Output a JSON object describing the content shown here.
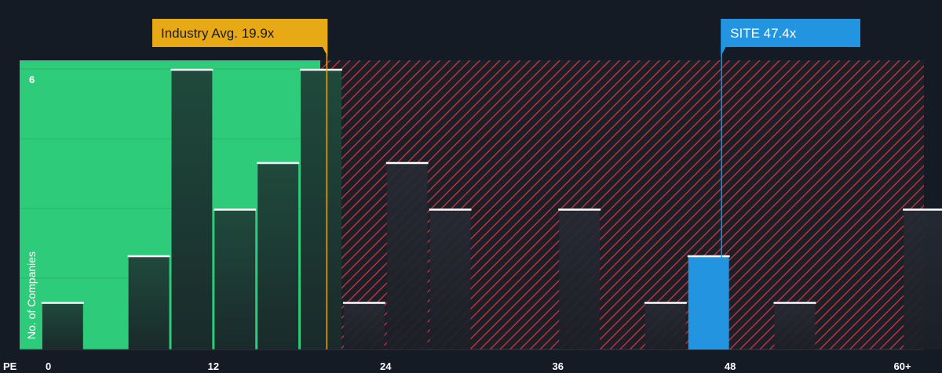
{
  "chart_data": {
    "type": "bar",
    "title": "",
    "xlabel": "PE",
    "ylabel": "No. of Companies",
    "x_tick_labels": [
      "0",
      "12",
      "24",
      "36",
      "48",
      "60+"
    ],
    "x_tick_values": [
      0,
      12,
      24,
      36,
      48,
      60
    ],
    "y_tick_labels": [
      "6"
    ],
    "y_tick_values": [
      6
    ],
    "xlim": [
      -1.5,
      61.5
    ],
    "ylim": [
      0,
      6.15
    ],
    "bins": [
      {
        "x_start": 0,
        "x_end": 3,
        "count": 1
      },
      {
        "x_start": 3,
        "x_end": 6,
        "count": 0
      },
      {
        "x_start": 6,
        "x_end": 9,
        "count": 2
      },
      {
        "x_start": 9,
        "x_end": 12,
        "count": 6
      },
      {
        "x_start": 12,
        "x_end": 15,
        "count": 3
      },
      {
        "x_start": 15,
        "x_end": 18,
        "count": 4
      },
      {
        "x_start": 18,
        "x_end": 21,
        "count": 6
      },
      {
        "x_start": 21,
        "x_end": 24,
        "count": 1
      },
      {
        "x_start": 24,
        "x_end": 27,
        "count": 4
      },
      {
        "x_start": 27,
        "x_end": 30,
        "count": 3
      },
      {
        "x_start": 30,
        "x_end": 33,
        "count": 0
      },
      {
        "x_start": 33,
        "x_end": 36,
        "count": 0
      },
      {
        "x_start": 36,
        "x_end": 39,
        "count": 3
      },
      {
        "x_start": 39,
        "x_end": 42,
        "count": 0
      },
      {
        "x_start": 42,
        "x_end": 45,
        "count": 1
      },
      {
        "x_start": 45,
        "x_end": 48,
        "count": 2,
        "highlight": true
      },
      {
        "x_start": 48,
        "x_end": 51,
        "count": 0
      },
      {
        "x_start": 51,
        "x_end": 54,
        "count": 1
      },
      {
        "x_start": 54,
        "x_end": 57,
        "count": 0
      },
      {
        "x_start": 57,
        "x_end": 60,
        "count": 0
      },
      {
        "x_start": 60,
        "x_end": 63,
        "count": 3
      }
    ],
    "industry_avg": {
      "label": "Industry Avg. 19.9x",
      "value": 19.9
    },
    "company": {
      "label": "SITE 47.4x",
      "value": 47.4
    },
    "grid": true,
    "colors": {
      "background": "#151b24",
      "good_zone": "#2ecc7a",
      "bad_zone_hatch": "#c0392b",
      "bar_dark": "#1f3d33",
      "bar_neutral": "#232731",
      "highlight_bar": "#2394e0",
      "industry_callout": "#e8a917",
      "company_callout": "#2394e0"
    }
  }
}
